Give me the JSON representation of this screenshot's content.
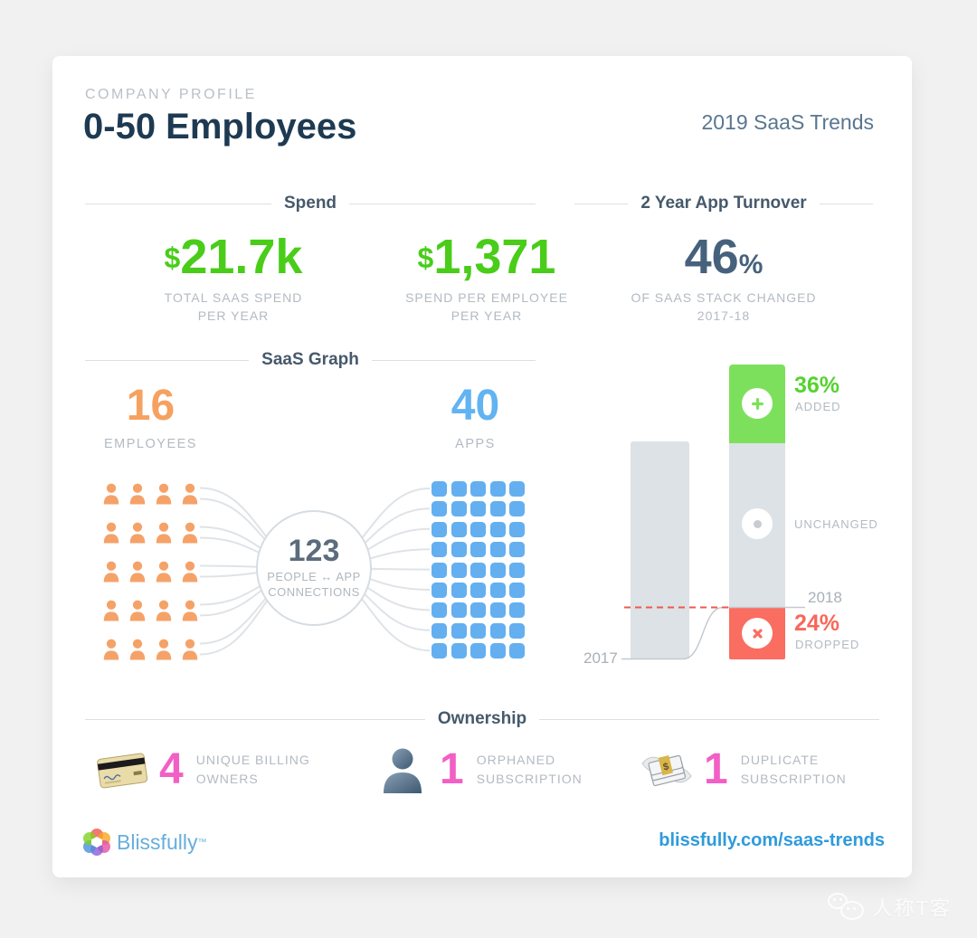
{
  "header": {
    "eyebrow": "COMPANY PROFILE",
    "title": "0-50 Employees",
    "report_title": "2019 SaaS Trends"
  },
  "sections": {
    "spend": "Spend",
    "turnover": "2 Year App Turnover",
    "saas_graph": "SaaS Graph",
    "ownership": "Ownership"
  },
  "spend_stats": [
    {
      "currency": "$",
      "amount": "21.7k",
      "label1": "TOTAL SAAS SPEND",
      "label2": "PER YEAR"
    },
    {
      "currency": "$",
      "amount": "1,371",
      "label1": "SPEND PER EMPLOYEE",
      "label2": "PER YEAR"
    }
  ],
  "saas_graph": {
    "employees": {
      "value": "16",
      "label": "EMPLOYEES"
    },
    "apps": {
      "value": "40",
      "label": "APPS"
    },
    "connections": {
      "value": "123",
      "label1": "PEOPLE ↔ APP",
      "label2": "CONNECTIONS"
    },
    "people_grid": {
      "rows": 5,
      "cols": 4
    },
    "apps_grid": {
      "rows": 9,
      "cols": 5
    }
  },
  "chart_data": {
    "type": "bar",
    "title": "2 Year App Turnover",
    "summary": {
      "value_main": "46",
      "value_suffix": "%",
      "label1": "OF SAAS STACK CHANGED",
      "label2": "2017-18"
    },
    "categories": [
      "2017",
      "2018"
    ],
    "bar_2017": {
      "segment": "baseline",
      "pct": 100,
      "color": "#DDE2E6"
    },
    "segments_2018": [
      {
        "name": "added",
        "pct": 36,
        "display": "36%",
        "label": "ADDED",
        "color": "#7DE05C"
      },
      {
        "name": "unchanged",
        "pct": null,
        "display": "",
        "label": "UNCHANGED",
        "color": "#DDE2E6"
      },
      {
        "name": "dropped",
        "pct": 24,
        "display": "24%",
        "label": "DROPPED",
        "color": "#FA6D61"
      }
    ],
    "grid": false,
    "legend_position": "right-of-bars",
    "notes": "2018 bar stacked: added on top (green), unchanged middle (gray), dropped below 2017 baseline (red); red dashed line marks 2017/2018 baseline"
  },
  "ownership_items": [
    {
      "icon": "credit-card",
      "value": "4",
      "label1": "UNIQUE BILLING",
      "label2": "OWNERS"
    },
    {
      "icon": "person",
      "value": "1",
      "label1": "ORPHANED",
      "label2": "SUBSCRIPTION"
    },
    {
      "icon": "money-wings",
      "value": "1",
      "label1": "DUPLICATE",
      "label2": "SUBSCRIPTION"
    }
  ],
  "footer": {
    "brand": "Blissfully",
    "trademark": "™",
    "link": "blissfully.com/saas-trends"
  },
  "watermark": {
    "text": "人称T客"
  },
  "colors": {
    "green_number": "#49CD19",
    "green_bar": "#7DE05C",
    "red_bar": "#FA6D61",
    "gray_bar": "#DDE2E6",
    "orange": "#F5A15F",
    "blue": "#64AFF0",
    "pink": "#F25FC5",
    "navy": "#1E3A52",
    "slate": "#46617C",
    "label_gray": "#B3BAC2",
    "link_blue": "#2E9BDC",
    "dashed_red": "#EF584E"
  }
}
